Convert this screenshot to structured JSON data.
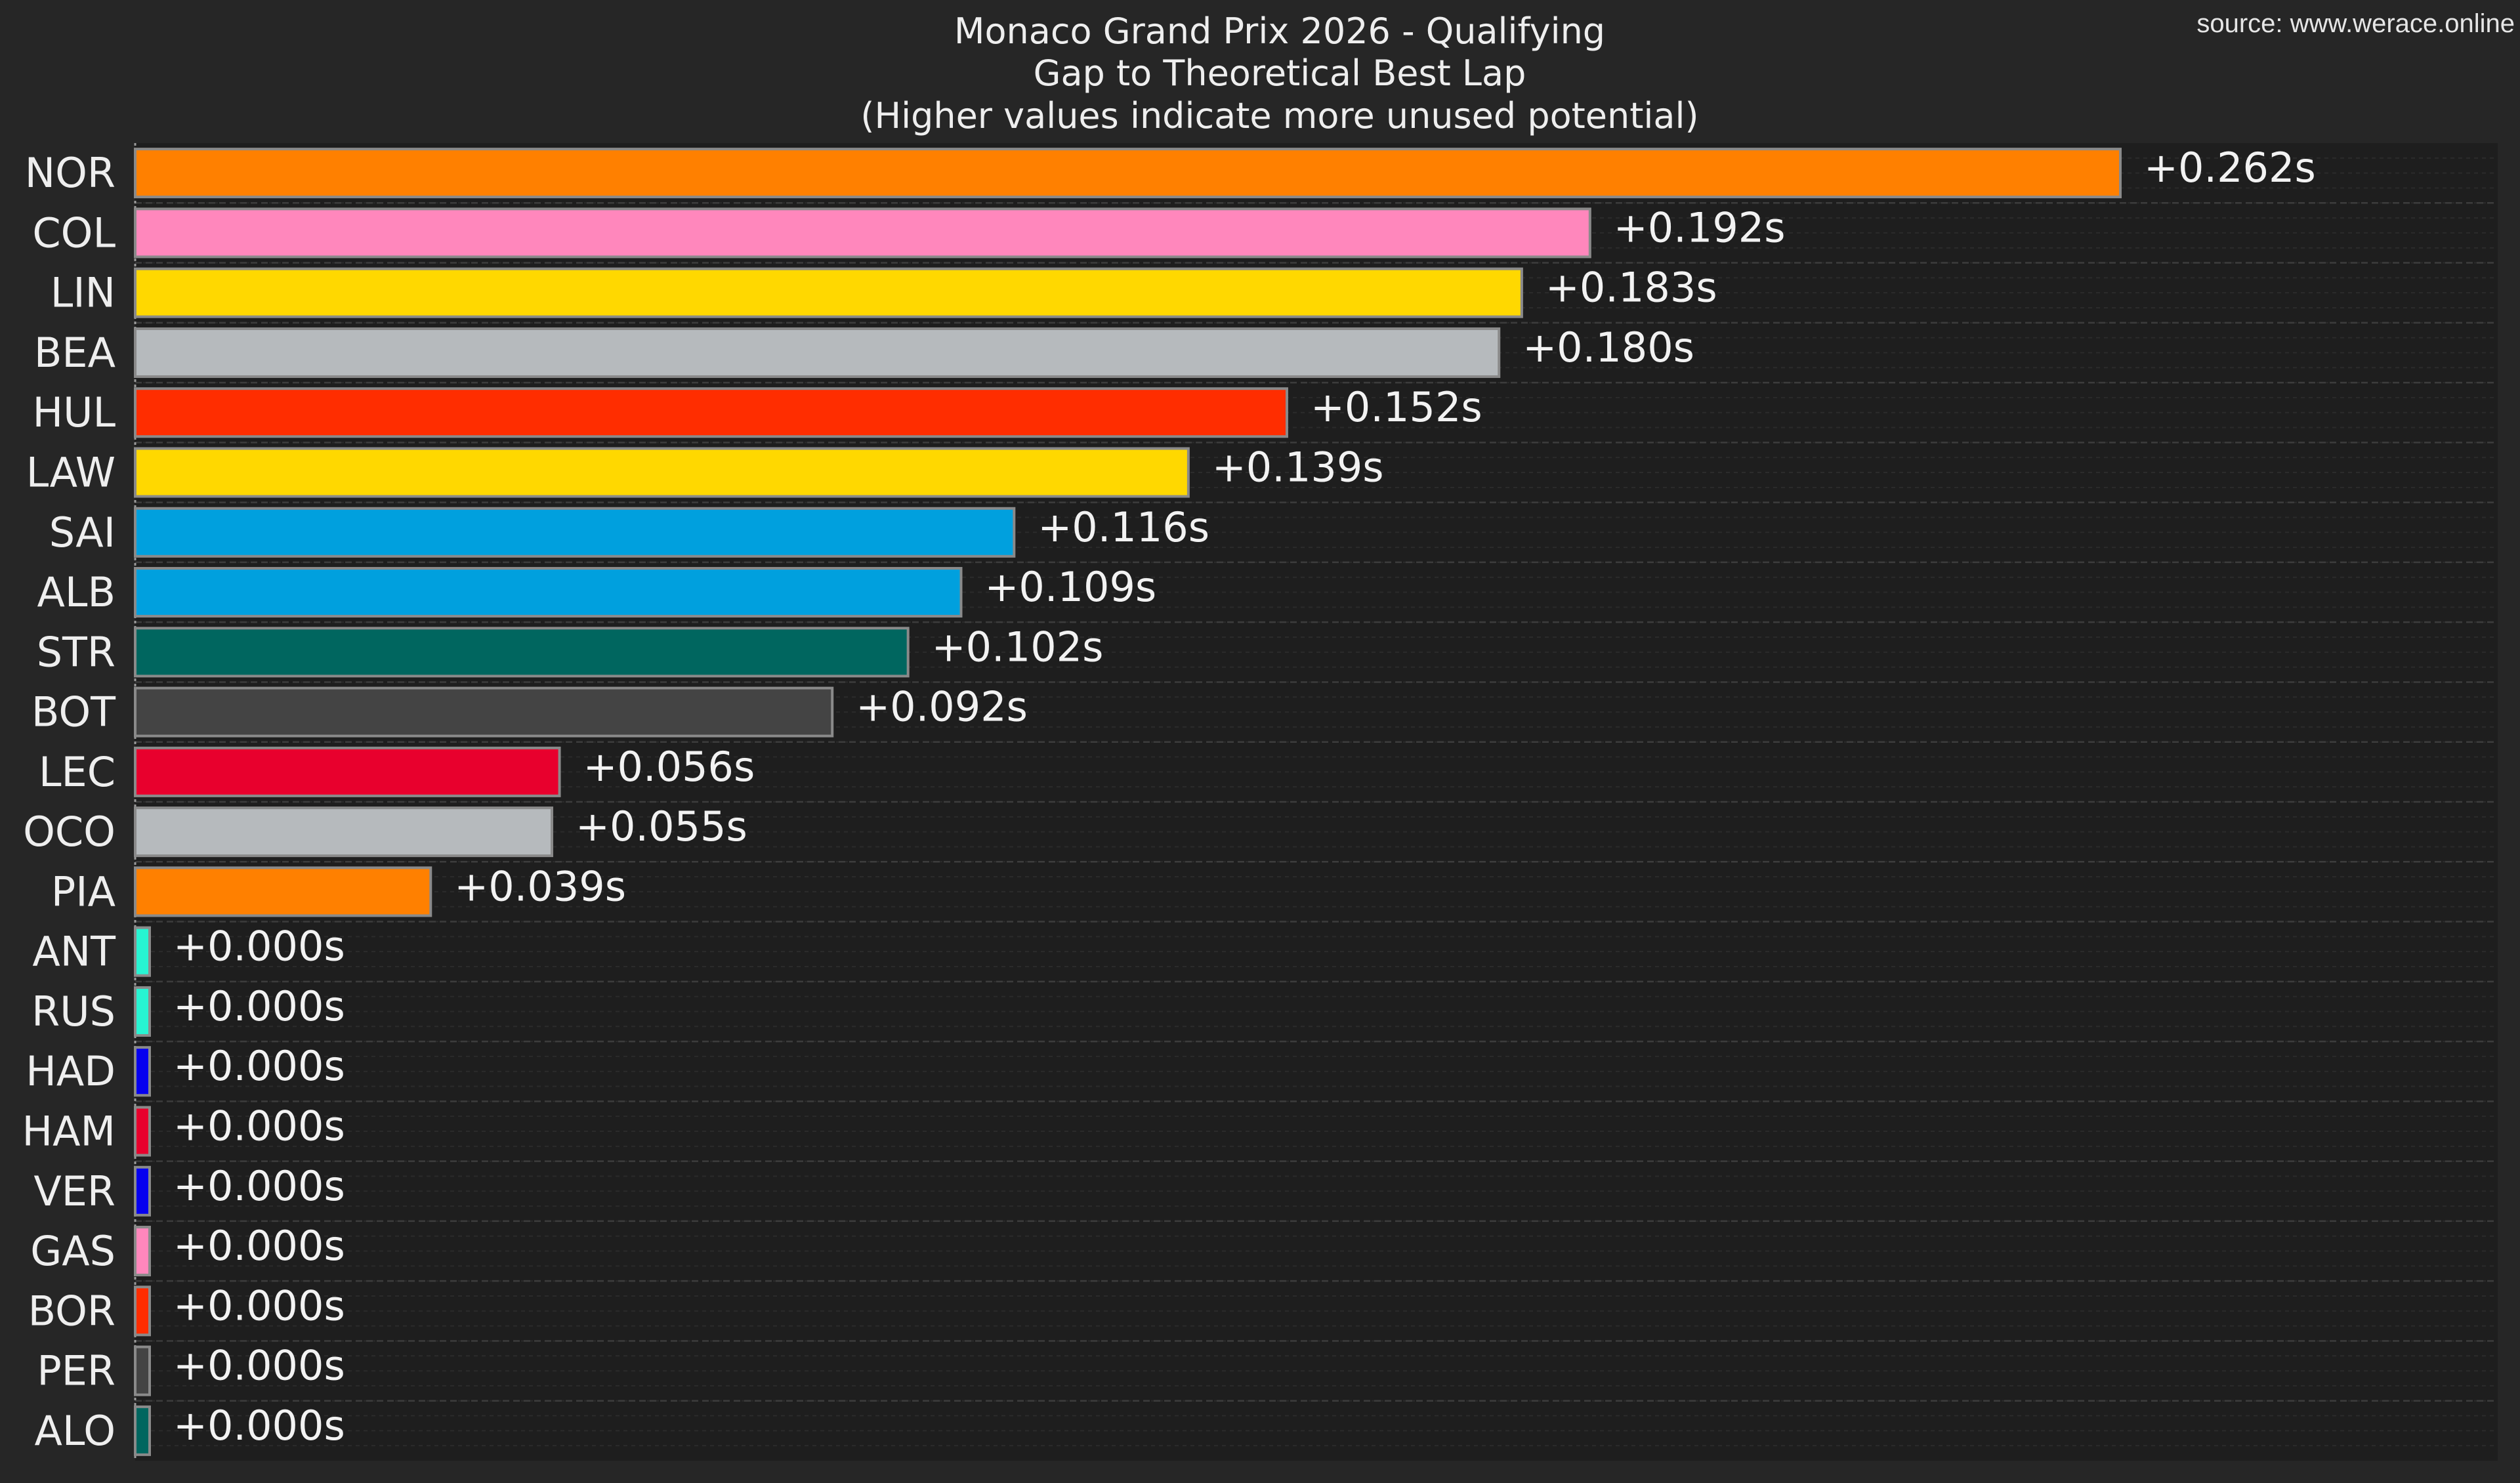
{
  "source_note": "source: www.werace.online",
  "chart_data": {
    "type": "bar",
    "orientation": "horizontal",
    "title_lines": [
      "Monaco Grand Prix 2026 - Qualifying",
      "Gap to Theoretical Best Lap",
      "(Higher values indicate more unused potential)"
    ],
    "xlabel": "",
    "ylabel": "",
    "unit": "s",
    "xlim": [
      0,
      0.28
    ],
    "grid": true,
    "categories": [
      "NOR",
      "COL",
      "LIN",
      "BEA",
      "HUL",
      "LAW",
      "SAI",
      "ALB",
      "STR",
      "BOT",
      "LEC",
      "OCO",
      "PIA",
      "ANT",
      "RUS",
      "HAD",
      "HAM",
      "VER",
      "GAS",
      "BOR",
      "PER",
      "ALO"
    ],
    "values": [
      0.262,
      0.192,
      0.183,
      0.18,
      0.152,
      0.139,
      0.116,
      0.109,
      0.102,
      0.092,
      0.056,
      0.055,
      0.039,
      0.0,
      0.0,
      0.0,
      0.0,
      0.0,
      0.0,
      0.0,
      0.0,
      0.0
    ],
    "value_labels": [
      "+0.262s",
      "+0.192s",
      "+0.183s",
      "+0.180s",
      "+0.152s",
      "+0.139s",
      "+0.116s",
      "+0.109s",
      "+0.102s",
      "+0.092s",
      "+0.056s",
      "+0.055s",
      "+0.039s",
      "+0.000s",
      "+0.000s",
      "+0.000s",
      "+0.000s",
      "+0.000s",
      "+0.000s",
      "+0.000s",
      "+0.000s",
      "+0.000s"
    ],
    "colors": [
      "#ff8000",
      "#ff87bc",
      "#ffd800",
      "#b6babd",
      "#ff2d00",
      "#ffd800",
      "#00a0de",
      "#00a0de",
      "#00665f",
      "#444444",
      "#e8002d",
      "#b6babd",
      "#ff8000",
      "#27f4d2",
      "#27f4d2",
      "#0600ef",
      "#e8002d",
      "#0600ef",
      "#ff87bc",
      "#ff2d00",
      "#444444",
      "#00665f"
    ],
    "colors_meaning": "team colors per driver bar"
  }
}
